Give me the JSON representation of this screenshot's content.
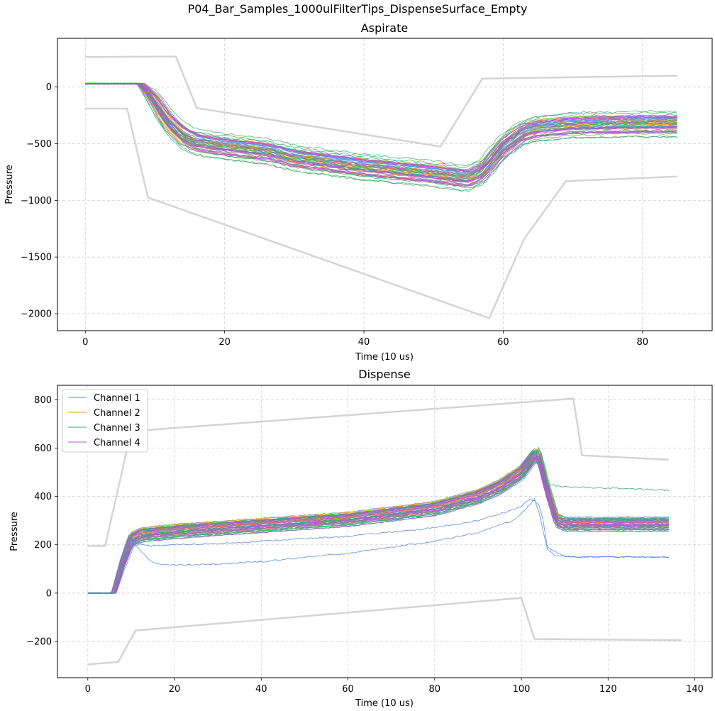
{
  "figure": {
    "suptitle": "P04_Bar_Samples_1000ulFilterTips_DispenseSurface_Empty"
  },
  "colors": {
    "channel_1": "#5b8fe0",
    "channel_2": "#e8a317",
    "channel_3": "#3aaa6a",
    "channel_4": "#b455d0",
    "envelope": "#d4d4d4",
    "grid": "#d0d0d0"
  },
  "chart_data": [
    {
      "type": "line",
      "title": "Aspirate",
      "xlabel": "Time (10 us)",
      "ylabel": "Pressure",
      "xlim": [
        -4,
        90
      ],
      "ylim": [
        -2150,
        430
      ],
      "xticks": [
        0,
        20,
        40,
        60,
        80
      ],
      "yticks": [
        0,
        -500,
        -1000,
        -1500,
        -2000
      ],
      "ytick_labels": [
        "0",
        "−500",
        "−1000",
        "−1500",
        "−2000"
      ],
      "grid": true,
      "envelope_upper": [
        [
          0,
          265
        ],
        [
          13,
          270
        ],
        [
          16,
          -185
        ],
        [
          51,
          -525
        ],
        [
          57,
          75
        ],
        [
          85,
          100
        ]
      ],
      "envelope_lower": [
        [
          0,
          -190
        ],
        [
          6,
          -190
        ],
        [
          9,
          -975
        ],
        [
          58,
          -2040
        ],
        [
          63,
          -1340
        ],
        [
          69,
          -830
        ],
        [
          85,
          -790
        ]
      ],
      "series_template": {
        "x": [
          0,
          8,
          10,
          12,
          14,
          16,
          20,
          26,
          30,
          40,
          50,
          55,
          57,
          60,
          63,
          65,
          70,
          80,
          85
        ],
        "y": [
          30,
          30,
          -120,
          -300,
          -420,
          -480,
          -520,
          -560,
          -620,
          -700,
          -760,
          -800,
          -740,
          -520,
          -390,
          -360,
          -330,
          -320,
          -320
        ]
      },
      "series": [
        {
          "name": "Channel 1",
          "curves": 12,
          "spread": 80
        },
        {
          "name": "Channel 2",
          "curves": 12,
          "spread": 80
        },
        {
          "name": "Channel 3",
          "curves": 16,
          "spread": 120
        },
        {
          "name": "Channel 4",
          "curves": 14,
          "spread": 80
        }
      ]
    },
    {
      "type": "line",
      "title": "Dispense",
      "xlabel": "Time (10 us)",
      "ylabel": "Pressure",
      "xlim": [
        -7,
        144
      ],
      "ylim": [
        -350,
        860
      ],
      "xticks": [
        0,
        20,
        40,
        60,
        80,
        100,
        120,
        140
      ],
      "yticks": [
        800,
        600,
        400,
        200,
        0,
        -200
      ],
      "ytick_labels": [
        "800",
        "600",
        "400",
        "200",
        "0",
        "−200"
      ],
      "grid": true,
      "legend": {
        "position": "upper-left",
        "entries": [
          "Channel 1",
          "Channel 2",
          "Channel 3",
          "Channel 4"
        ]
      },
      "envelope_upper": [
        [
          0,
          195
        ],
        [
          4,
          195
        ],
        [
          10,
          670
        ],
        [
          112,
          805
        ],
        [
          114,
          570
        ],
        [
          134,
          552
        ]
      ],
      "envelope_lower": [
        [
          0,
          -295
        ],
        [
          7,
          -285
        ],
        [
          11,
          -155
        ],
        [
          100,
          -20
        ],
        [
          103,
          -190
        ],
        [
          137,
          -195
        ]
      ],
      "series_template": {
        "x": [
          0,
          6,
          8,
          10,
          12,
          20,
          40,
          60,
          80,
          90,
          95,
          100,
          103,
          104,
          106,
          108,
          110,
          134
        ],
        "y": [
          0,
          0,
          120,
          220,
          240,
          255,
          280,
          305,
          350,
          400,
          440,
          500,
          570,
          560,
          420,
          300,
          285,
          285
        ]
      },
      "outliers": [
        {
          "name": "Channel 1",
          "x": [
            0,
            6,
            8,
            10,
            12,
            14,
            20,
            30,
            40,
            60,
            80,
            90,
            98,
            100,
            102,
            104,
            105,
            106,
            110,
            134
          ],
          "y": [
            0,
            0,
            120,
            215,
            200,
            195,
            200,
            205,
            215,
            235,
            270,
            300,
            345,
            360,
            390,
            370,
            300,
            190,
            150,
            150
          ]
        },
        {
          "name": "Channel 1",
          "x": [
            0,
            6,
            8,
            10,
            12,
            14,
            16,
            20,
            30,
            40,
            60,
            80,
            90,
            98,
            101,
            103,
            104,
            105,
            106,
            108,
            112,
            134
          ],
          "y": [
            0,
            0,
            120,
            220,
            180,
            140,
            120,
            115,
            120,
            130,
            165,
            215,
            250,
            300,
            345,
            390,
            340,
            260,
            180,
            155,
            150,
            148
          ]
        },
        {
          "name": "Channel 3",
          "x": [
            0,
            6,
            8,
            10,
            12,
            20,
            40,
            60,
            80,
            90,
            100,
            104,
            106,
            110,
            120,
            126,
            130,
            134
          ],
          "y": [
            0,
            0,
            120,
            220,
            240,
            255,
            280,
            305,
            350,
            400,
            500,
            600,
            450,
            440,
            435,
            432,
            428,
            425
          ]
        }
      ],
      "series": [
        {
          "name": "Channel 1",
          "curves": 10,
          "spread": 30
        },
        {
          "name": "Channel 2",
          "curves": 12,
          "spread": 30
        },
        {
          "name": "Channel 3",
          "curves": 16,
          "spread": 30
        },
        {
          "name": "Channel 4",
          "curves": 14,
          "spread": 30
        }
      ]
    }
  ]
}
